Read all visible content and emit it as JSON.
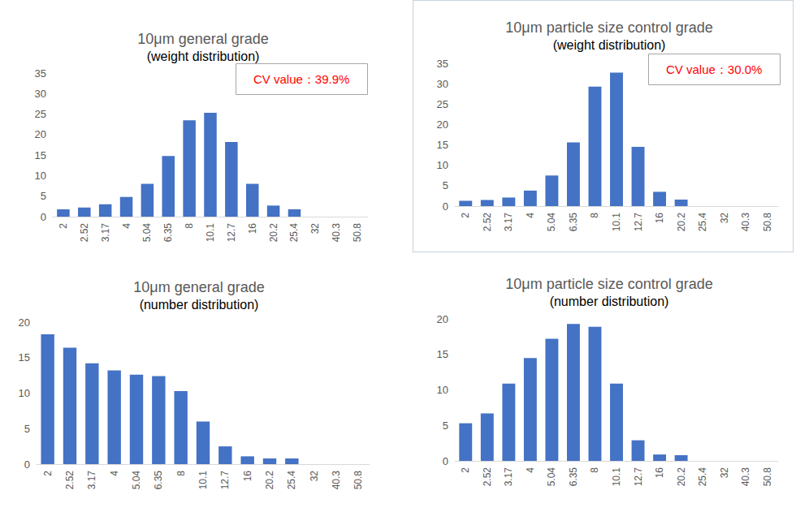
{
  "chart_data": [
    {
      "type": "bar",
      "title": "10μm general grade",
      "subtitle": "(weight distribution)",
      "annotation": "CV value：39.9%",
      "categories": [
        "2",
        "2.52",
        "3.17",
        "4",
        "5.04",
        "6.35",
        "8",
        "10.1",
        "12.7",
        "16",
        "20.2",
        "25.4",
        "32",
        "40.3",
        "50.8"
      ],
      "values": [
        1.8,
        2.2,
        3.0,
        4.8,
        8.0,
        14.8,
        23.5,
        25.3,
        18.2,
        8.0,
        2.7,
        1.8,
        0,
        0,
        0
      ],
      "color": "#4472c4",
      "ylim": [
        0,
        35
      ],
      "yticks": [
        0,
        5,
        10,
        15,
        20,
        25,
        30,
        35
      ],
      "grid": false
    },
    {
      "type": "bar",
      "title": "10μm particle size control grade",
      "subtitle": "(weight distribution)",
      "annotation": "CV value：30.0%",
      "categories": [
        "2",
        "2.52",
        "3.17",
        "4",
        "5.04",
        "6.35",
        "8",
        "10.1",
        "12.7",
        "16",
        "20.2",
        "25.4",
        "32",
        "40.3",
        "50.8"
      ],
      "values": [
        1.3,
        1.5,
        2.1,
        3.8,
        7.5,
        15.6,
        29.3,
        32.7,
        14.5,
        3.5,
        1.6,
        0,
        0,
        0,
        0
      ],
      "color": "#4472c4",
      "ylim": [
        0,
        35
      ],
      "yticks": [
        0,
        5,
        10,
        15,
        20,
        25,
        30,
        35
      ],
      "grid": false
    },
    {
      "type": "bar",
      "title": "10μm general grade",
      "subtitle": "(number distribution)",
      "categories": [
        "2",
        "2.52",
        "3.17",
        "4",
        "5.04",
        "6.35",
        "8",
        "10.1",
        "12.7",
        "16",
        "20.2",
        "25.4",
        "32",
        "40.3",
        "50.8"
      ],
      "values": [
        18.3,
        16.4,
        14.2,
        13.2,
        12.6,
        12.4,
        10.3,
        6.0,
        2.5,
        1.1,
        0.8,
        0.8,
        0,
        0,
        0
      ],
      "color": "#4472c4",
      "ylim": [
        0,
        20
      ],
      "yticks": [
        0,
        5,
        10,
        15,
        20
      ],
      "grid": false
    },
    {
      "type": "bar",
      "title": "10μm particle size control grade",
      "subtitle": "(number distribution)",
      "categories": [
        "2",
        "2.52",
        "3.17",
        "4",
        "5.04",
        "6.35",
        "8",
        "10.1",
        "12.7",
        "16",
        "20.2",
        "25.4",
        "32",
        "40.3",
        "50.8"
      ],
      "values": [
        5.3,
        6.7,
        10.9,
        14.5,
        17.2,
        19.3,
        18.9,
        10.9,
        2.9,
        0.9,
        0.8,
        0,
        0,
        0,
        0
      ],
      "color": "#4472c4",
      "ylim": [
        0,
        20
      ],
      "yticks": [
        0,
        5,
        10,
        15,
        20
      ],
      "grid": false
    }
  ]
}
